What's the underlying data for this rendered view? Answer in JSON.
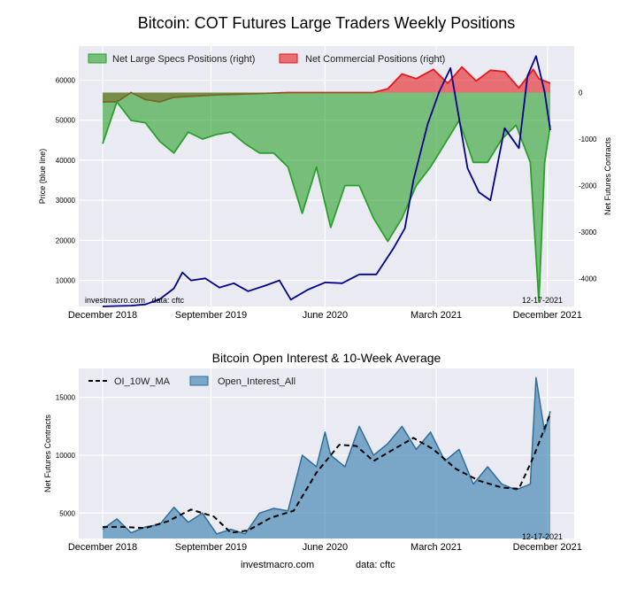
{
  "title": "Bitcoin: COT Futures Large Traders Weekly Positions",
  "footer": {
    "site": "investmacro.com",
    "source": "data: cftc"
  },
  "chart_data": [
    {
      "type": "area",
      "xlabel": "",
      "ylabel_left": "Price (blue line)",
      "ylabel_right": "Net Futures Contracts",
      "x_ticks": [
        "December 2018",
        "September 2019",
        "June 2020",
        "March 2021",
        "December 2021"
      ],
      "y_left_ticks": [
        10000,
        20000,
        30000,
        40000,
        50000,
        60000
      ],
      "y_left_lim": [
        3500,
        68500
      ],
      "y_right_ticks": [
        0,
        -1000,
        -2000,
        -3000,
        -4000
      ],
      "y_right_lim": [
        -4600,
        1000
      ],
      "grid": true,
      "legend_position": "top-left",
      "watermark_left": "investmacro.com   data: cftc",
      "date_label": "12-17-2021",
      "series": [
        {
          "name": "Net Large Specs Positions (right)",
          "axis": "right",
          "color": "#2ca02c",
          "x": [
            "2018-12-11",
            "2019-01-15",
            "2019-02-19",
            "2019-03-26",
            "2019-04-30",
            "2019-06-04",
            "2019-07-09",
            "2019-08-13",
            "2019-09-17",
            "2019-10-22",
            "2019-11-26",
            "2019-12-31",
            "2020-02-04",
            "2020-03-10",
            "2020-04-14",
            "2020-05-19",
            "2020-06-23",
            "2020-07-28",
            "2020-09-01",
            "2020-10-06",
            "2020-11-10",
            "2020-12-15",
            "2021-01-19",
            "2021-02-23",
            "2021-03-30",
            "2021-05-04",
            "2021-06-08",
            "2021-07-13",
            "2021-08-17",
            "2021-09-21",
            "2021-10-26",
            "2021-11-16",
            "2021-11-30",
            "2021-12-14"
          ],
          "values": [
            -1100,
            -200,
            -600,
            -650,
            -1050,
            -1300,
            -850,
            -1000,
            -900,
            -850,
            -1100,
            -1300,
            -1300,
            -1600,
            -2600,
            -1600,
            -2900,
            -2000,
            -2000,
            -2700,
            -3200,
            -2700,
            -2000,
            -1600,
            -1100,
            -600,
            -1500,
            -1500,
            -1000,
            -700,
            -1500,
            -4500,
            -1500,
            -700
          ]
        },
        {
          "name": "Net Commercial Positions (right)",
          "axis": "right",
          "color": "#e41a1c",
          "x": [
            "2018-12-11",
            "2019-01-15",
            "2019-02-19",
            "2019-03-26",
            "2019-04-30",
            "2019-06-04",
            "2019-09-17",
            "2019-12-31",
            "2020-03-10",
            "2020-06-23",
            "2020-10-06",
            "2020-11-10",
            "2020-12-15",
            "2021-01-19",
            "2021-03-02",
            "2021-04-06",
            "2021-05-11",
            "2021-06-15",
            "2021-07-20",
            "2021-08-24",
            "2021-09-28",
            "2021-11-02",
            "2021-11-16",
            "2021-12-14"
          ],
          "values": [
            -200,
            -200,
            0,
            -150,
            -200,
            -100,
            -50,
            -20,
            0,
            0,
            0,
            80,
            400,
            300,
            500,
            200,
            550,
            250,
            480,
            450,
            100,
            500,
            300,
            200
          ]
        },
        {
          "name": "Price",
          "axis": "left",
          "color": "#00008b",
          "x": [
            "2018-12-11",
            "2019-01-15",
            "2019-02-19",
            "2019-03-26",
            "2019-04-30",
            "2019-06-04",
            "2019-06-25",
            "2019-07-16",
            "2019-08-20",
            "2019-09-24",
            "2019-10-29",
            "2019-12-03",
            "2020-01-14",
            "2020-02-18",
            "2020-03-17",
            "2020-04-28",
            "2020-06-09",
            "2020-07-21",
            "2020-09-01",
            "2020-10-13",
            "2020-11-24",
            "2020-12-22",
            "2021-01-12",
            "2021-02-16",
            "2021-03-16",
            "2021-04-13",
            "2021-05-25",
            "2021-06-22",
            "2021-07-20",
            "2021-08-24",
            "2021-09-28",
            "2021-10-19",
            "2021-11-09",
            "2021-11-30",
            "2021-12-14"
          ],
          "values": [
            3500,
            3600,
            3700,
            4000,
            5300,
            8000,
            12000,
            10000,
            10500,
            8200,
            9300,
            7300,
            8700,
            10000,
            5200,
            7700,
            9500,
            9300,
            11500,
            11500,
            18000,
            23000,
            35000,
            49000,
            57000,
            63000,
            38000,
            32000,
            30000,
            48000,
            43000,
            61000,
            66000,
            57000,
            47500
          ]
        }
      ]
    },
    {
      "type": "area",
      "title": "Bitcoin Open Interest & 10-Week Average",
      "xlabel": "",
      "ylabel": "Net Futures Contracts",
      "x_ticks": [
        "December 2018",
        "September 2019",
        "June 2020",
        "March 2021",
        "December 2021"
      ],
      "y_ticks": [
        5000,
        10000,
        15000
      ],
      "ylim": [
        2800,
        17500
      ],
      "grid": true,
      "legend_position": "top-left",
      "date_label": "12-17-2021",
      "series": [
        {
          "name": "Open_Interest_All",
          "color": "#4a8ab5",
          "x": [
            "2018-12-11",
            "2019-01-15",
            "2019-02-19",
            "2019-03-26",
            "2019-04-30",
            "2019-06-04",
            "2019-07-09",
            "2019-08-13",
            "2019-09-17",
            "2019-10-22",
            "2019-11-26",
            "2019-12-31",
            "2020-02-04",
            "2020-03-10",
            "2020-04-14",
            "2020-05-19",
            "2020-06-09",
            "2020-06-23",
            "2020-07-28",
            "2020-09-01",
            "2020-10-06",
            "2020-11-10",
            "2020-12-15",
            "2021-01-19",
            "2021-02-23",
            "2021-03-30",
            "2021-05-04",
            "2021-06-08",
            "2021-07-13",
            "2021-08-17",
            "2021-09-21",
            "2021-10-26",
            "2021-11-09",
            "2021-11-30",
            "2021-12-14"
          ],
          "values": [
            3600,
            4500,
            3300,
            3800,
            4000,
            5500,
            4200,
            5000,
            3200,
            3600,
            3200,
            5000,
            5400,
            5200,
            10000,
            9000,
            12000,
            10000,
            9000,
            12500,
            10000,
            11000,
            12500,
            10500,
            12000,
            9500,
            10500,
            7500,
            9000,
            7500,
            7000,
            7500,
            16700,
            12000,
            13800
          ]
        },
        {
          "name": "OI_10W_MA",
          "color": "#000000",
          "x": [
            "2018-12-11",
            "2019-01-29",
            "2019-03-26",
            "2019-05-21",
            "2019-07-16",
            "2019-09-10",
            "2019-10-22",
            "2019-12-03",
            "2020-01-28",
            "2020-03-24",
            "2020-05-19",
            "2020-07-14",
            "2020-08-25",
            "2020-10-06",
            "2020-11-24",
            "2021-01-12",
            "2021-03-02",
            "2021-04-27",
            "2021-06-22",
            "2021-08-17",
            "2021-09-28",
            "2021-11-02",
            "2021-12-14"
          ],
          "values": [
            3800,
            3800,
            3700,
            4300,
            5300,
            4700,
            3300,
            3500,
            4600,
            5200,
            8500,
            10900,
            10800,
            9500,
            10500,
            11500,
            10500,
            8800,
            7800,
            7200,
            7100,
            9800,
            13600
          ]
        }
      ]
    }
  ]
}
